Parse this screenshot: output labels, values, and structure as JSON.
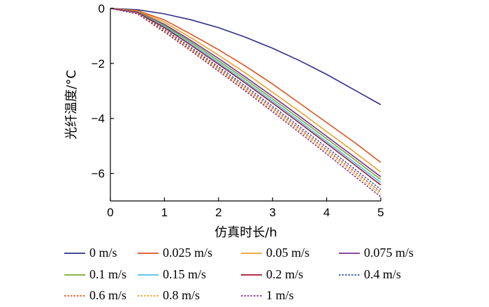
{
  "chart_data": {
    "type": "line",
    "title": "",
    "xlabel": "仿真时长/h",
    "ylabel": "光纤温度/°C",
    "xlim": [
      0,
      5
    ],
    "ylim": [
      -7,
      0
    ],
    "xticks": [
      "0",
      "1",
      "2",
      "3",
      "4",
      "5"
    ],
    "yticks": [
      "0",
      "−2",
      "−4",
      "−6"
    ],
    "x": [
      0,
      0.5,
      1,
      1.5,
      2,
      2.5,
      3,
      3.5,
      4,
      4.5,
      5
    ],
    "grid": false,
    "legend_position": "bottom",
    "series": [
      {
        "name": "0 m/s",
        "color": "#2e2e86",
        "dash": "solid",
        "values": [
          0,
          -0.05,
          -0.2,
          -0.42,
          -0.7,
          -1.05,
          -1.45,
          -1.9,
          -2.4,
          -2.95,
          -3.5
        ]
      },
      {
        "name": "0.025 m/s",
        "color": "#d9541e",
        "dash": "solid",
        "values": [
          0,
          -0.08,
          -0.42,
          -0.95,
          -1.5,
          -2.1,
          -2.75,
          -3.45,
          -4.15,
          -4.85,
          -5.6
        ]
      },
      {
        "name": "0.05 m/s",
        "color": "#e9a02a",
        "dash": "solid",
        "values": [
          0,
          -0.1,
          -0.5,
          -1.08,
          -1.7,
          -2.35,
          -3.05,
          -3.75,
          -4.48,
          -5.2,
          -5.95
        ]
      },
      {
        "name": "0.075 m/s",
        "color": "#7b2f8e",
        "dash": "solid",
        "values": [
          0,
          -0.12,
          -0.58,
          -1.18,
          -1.82,
          -2.5,
          -3.2,
          -3.92,
          -4.65,
          -5.38,
          -6.12
        ]
      },
      {
        "name": "0.1 m/s",
        "color": "#77ac30",
        "dash": "solid",
        "values": [
          0,
          -0.13,
          -0.62,
          -1.24,
          -1.9,
          -2.58,
          -3.29,
          -4.01,
          -4.74,
          -5.47,
          -6.22
        ]
      },
      {
        "name": "0.15 m/s",
        "color": "#4dbeee",
        "dash": "solid",
        "values": [
          0,
          -0.14,
          -0.66,
          -1.3,
          -1.97,
          -2.66,
          -3.37,
          -4.1,
          -4.84,
          -5.58,
          -6.33
        ]
      },
      {
        "name": "0.2 m/s",
        "color": "#a2142f",
        "dash": "solid",
        "values": [
          0,
          -0.15,
          -0.7,
          -1.35,
          -2.03,
          -2.72,
          -3.44,
          -4.17,
          -4.91,
          -5.66,
          -6.42
        ]
      },
      {
        "name": "0.4 m/s",
        "color": "#3056a8",
        "dash": "dotted",
        "values": [
          0,
          -0.17,
          -0.76,
          -1.43,
          -2.12,
          -2.83,
          -3.56,
          -4.3,
          -5.05,
          -5.81,
          -6.58
        ]
      },
      {
        "name": "0.6 m/s",
        "color": "#d9541e",
        "dash": "dotted",
        "values": [
          0,
          -0.18,
          -0.8,
          -1.48,
          -2.18,
          -2.9,
          -3.63,
          -4.38,
          -5.14,
          -5.9,
          -6.68
        ]
      },
      {
        "name": "0.8 m/s",
        "color": "#e9a02a",
        "dash": "dotted",
        "values": [
          0,
          -0.19,
          -0.83,
          -1.52,
          -2.23,
          -2.96,
          -3.7,
          -4.45,
          -5.21,
          -5.98,
          -6.76
        ]
      },
      {
        "name": "1 m/s",
        "color": "#7b2f8e",
        "dash": "dotted",
        "values": [
          0,
          -0.2,
          -0.86,
          -1.56,
          -2.28,
          -3.01,
          -3.76,
          -4.52,
          -5.29,
          -6.07,
          -6.85
        ]
      }
    ]
  }
}
